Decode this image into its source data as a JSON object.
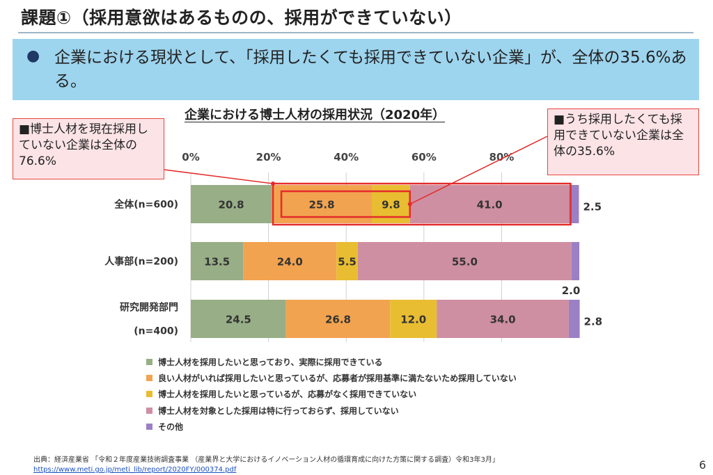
{
  "slide": {
    "title": "課題①（採用意欲はあるものの、採用ができていない）",
    "summary_bullet": "●",
    "summary": "企業における現状として、「採用したくても採用できていない企業」が、全体の35.6%ある。",
    "page_number": "6"
  },
  "callouts": {
    "left": "■博士人材を現在採用していない企業は全体の76.6%",
    "right": "■うち採用したくても採用できていない企業は全体の35.6%"
  },
  "colors": {
    "highlight": "#e32b2b",
    "callout_fill": "#fbe3e6",
    "summary_fill": "#9dd4ee"
  },
  "chart_data": {
    "type": "bar",
    "orientation": "horizontal",
    "stacked": true,
    "title": "企業における博士人材の採用状況（2020年）",
    "categories": [
      {
        "label": "全体(n=600)",
        "lines": [
          "全体(n=600)"
        ]
      },
      {
        "label": "人事部(n=200)",
        "lines": [
          "人事部(n=200)"
        ]
      },
      {
        "label": "研究開発部門(n=400)",
        "lines": [
          "研究開発部門",
          "(n=400)"
        ]
      }
    ],
    "x_ticks": [
      "0%",
      "20%",
      "40%",
      "60%",
      "80%"
    ],
    "xlim": [
      0,
      100
    ],
    "grid": true,
    "legend_position": "bottom",
    "series": [
      {
        "name": "博士人材を採用したいと思っており、実際に採用できている",
        "color": "#98ae87",
        "values": [
          20.8,
          13.5,
          24.5
        ],
        "labels": [
          "20.8",
          "13.5",
          "24.5"
        ]
      },
      {
        "name": "良い人材がいれば採用したいと思っているが、応募者が採用基準に満たないため採用していない",
        "color": "#f2a34f",
        "values": [
          25.8,
          24.0,
          26.8
        ],
        "labels": [
          "25.8",
          "24.0",
          "26.8"
        ]
      },
      {
        "name": "博士人材を採用したいと思っているが、応募がなく採用できていない",
        "color": "#e9bd31",
        "values": [
          9.8,
          5.5,
          12.0
        ],
        "labels": [
          "9.8",
          "5.5",
          "12.0"
        ]
      },
      {
        "name": "博士人材を対象とした採用は特に行っておらず、採用していない",
        "color": "#cf8fa2",
        "values": [
          41.0,
          55.0,
          34.0
        ],
        "labels": [
          "41.0",
          "55.0",
          "34.0"
        ]
      },
      {
        "name": "その他",
        "color": "#9b80c4",
        "values": [
          2.5,
          2.0,
          2.8
        ],
        "labels": [
          "2.5",
          "2.0",
          "2.8"
        ]
      }
    ]
  },
  "source": {
    "label": "出典：経済産業省 「令和２年度産業技術調査事業 （産業界と大学におけるイノベーション人材の循環育成に向けた方策に関する調査）令和3年3月」",
    "url": "https://www.meti.go.jp/meti_lib/report/2020FY/000374.pdf"
  }
}
